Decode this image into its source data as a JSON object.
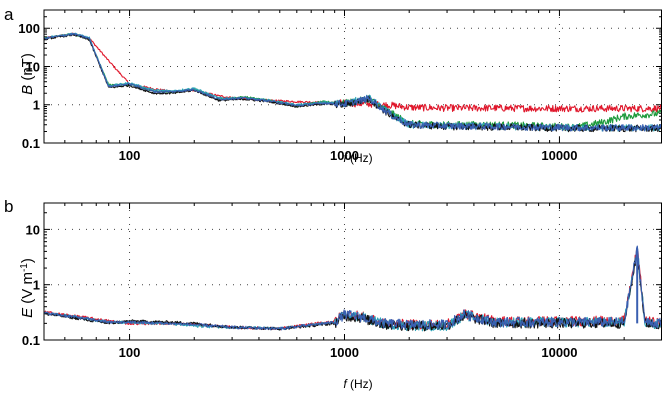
{
  "figure": {
    "panels": [
      {
        "id": "a",
        "panel_label": "a",
        "y_label_main": "B",
        "y_label_unit": " (nT)",
        "x_label_main": "f",
        "x_label_unit": " (Hz)"
      },
      {
        "id": "b",
        "panel_label": "b",
        "y_label_main": "E",
        "y_label_unit_pre": " (V m",
        "y_label_unit_sup": "-1",
        "y_label_unit_post": ")",
        "x_label_main": "f",
        "x_label_unit": " (Hz)"
      }
    ]
  },
  "chart_data": [
    {
      "type": "line",
      "panel": "a",
      "xscale": "log",
      "yscale": "log",
      "xlim": [
        40,
        30000
      ],
      "ylim": [
        0.1,
        300
      ],
      "xticks": [
        100,
        1000,
        10000
      ],
      "xtick_labels": [
        "100",
        "1000",
        "10000"
      ],
      "yticks": [
        0.1,
        1,
        10,
        100
      ],
      "ytick_labels": [
        "0.1",
        "1",
        "10",
        "100"
      ],
      "grid": "dotted",
      "series_colors": [
        "#e0182c",
        "#1e9a3c",
        "#2aa3b8",
        "#111111",
        "#3a5fb0"
      ],
      "series": [
        {
          "color": "#e0182c",
          "x": [
            40,
            55,
            65,
            80,
            100,
            130,
            160,
            200,
            260,
            340,
            450,
            600,
            800,
            1000,
            1300,
            1700,
            2000,
            3000,
            5000,
            8000,
            12000,
            20000,
            30000
          ],
          "y": [
            55,
            72,
            55,
            14,
            3.5,
            2.6,
            2.2,
            2.4,
            1.7,
            1.4,
            1.3,
            1.2,
            1.15,
            1.1,
            1.05,
            0.95,
            0.85,
            0.82,
            0.82,
            0.8,
            0.8,
            0.8,
            0.8
          ]
        },
        {
          "color": "#1e9a3c",
          "x": [
            40,
            55,
            65,
            80,
            100,
            130,
            160,
            200,
            260,
            340,
            450,
            600,
            800,
            1000,
            1300,
            1700,
            2000,
            3000,
            5000,
            8000,
            12000,
            16000,
            20000,
            25000,
            30000
          ],
          "y": [
            55,
            70,
            52,
            3.3,
            3.4,
            2.3,
            2.1,
            2.6,
            1.4,
            1.6,
            1.3,
            0.95,
            1.2,
            1.1,
            1.4,
            0.55,
            0.32,
            0.3,
            0.3,
            0.28,
            0.26,
            0.35,
            0.5,
            0.55,
            0.6
          ]
        },
        {
          "color": "#2aa3b8",
          "x": [
            40,
            55,
            65,
            80,
            100,
            130,
            160,
            200,
            260,
            340,
            450,
            600,
            800,
            1000,
            1300,
            1700,
            2000,
            3000,
            5000,
            8000,
            12000,
            20000,
            30000
          ],
          "y": [
            55,
            73,
            56,
            3.1,
            3.7,
            2.4,
            2.3,
            2.7,
            1.5,
            1.5,
            1.3,
            1.0,
            1.15,
            1.1,
            1.5,
            0.5,
            0.3,
            0.28,
            0.27,
            0.26,
            0.25,
            0.25,
            0.25
          ]
        },
        {
          "color": "#111111",
          "x": [
            40,
            55,
            65,
            80,
            100,
            130,
            160,
            200,
            260,
            340,
            450,
            600,
            800,
            1000,
            1300,
            1700,
            2000,
            3000,
            5000,
            8000,
            12000,
            20000,
            30000
          ],
          "y": [
            52,
            68,
            50,
            2.8,
            3.2,
            2.0,
            2.0,
            2.4,
            1.3,
            1.4,
            1.2,
            0.9,
            1.05,
            1.0,
            1.4,
            0.45,
            0.3,
            0.27,
            0.26,
            0.25,
            0.24,
            0.24,
            0.24
          ]
        },
        {
          "color": "#3a5fb0",
          "x": [
            40,
            55,
            65,
            80,
            100,
            130,
            160,
            200,
            260,
            340,
            450,
            600,
            800,
            1000,
            1300,
            1700,
            2000,
            3000,
            5000,
            8000,
            12000,
            20000,
            30000
          ],
          "y": [
            54,
            71,
            54,
            3.0,
            3.5,
            2.2,
            2.2,
            2.5,
            1.4,
            1.5,
            1.25,
            0.95,
            1.1,
            1.05,
            1.45,
            0.48,
            0.3,
            0.28,
            0.27,
            0.26,
            0.25,
            0.25,
            0.25
          ]
        }
      ]
    },
    {
      "type": "line",
      "panel": "b",
      "xscale": "log",
      "yscale": "log",
      "xlim": [
        40,
        30000
      ],
      "ylim": [
        0.1,
        30
      ],
      "xticks": [
        100,
        1000,
        10000
      ],
      "xtick_labels": [
        "100",
        "1000",
        "10000"
      ],
      "yticks": [
        0.1,
        1,
        10
      ],
      "ytick_labels": [
        "0.1",
        "1",
        "10"
      ],
      "grid": "dotted",
      "annotations": [
        {
          "x": 23000,
          "y": 4.5,
          "note": "narrow spike"
        }
      ],
      "series": [
        {
          "color": "#e0182c",
          "x": [
            40,
            60,
            80,
            100,
            150,
            200,
            300,
            500,
            900,
            1000,
            1200,
            1500,
            2000,
            3000,
            3600,
            5000,
            8000,
            12000,
            20000,
            23000,
            25000,
            30000
          ],
          "y": [
            0.32,
            0.26,
            0.22,
            0.2,
            0.2,
            0.19,
            0.17,
            0.16,
            0.22,
            0.3,
            0.27,
            0.2,
            0.19,
            0.19,
            0.3,
            0.22,
            0.22,
            0.22,
            0.22,
            4.5,
            0.22,
            0.2
          ]
        },
        {
          "color": "#2aa3b8",
          "x": [
            40,
            60,
            80,
            100,
            150,
            200,
            300,
            500,
            900,
            1000,
            1200,
            1500,
            2000,
            3000,
            3600,
            5000,
            8000,
            12000,
            20000,
            23000,
            25000,
            30000
          ],
          "y": [
            0.31,
            0.25,
            0.21,
            0.21,
            0.2,
            0.18,
            0.17,
            0.16,
            0.21,
            0.28,
            0.26,
            0.2,
            0.18,
            0.18,
            0.28,
            0.21,
            0.21,
            0.21,
            0.21,
            4.3,
            0.21,
            0.19
          ]
        },
        {
          "color": "#111111",
          "x": [
            40,
            60,
            80,
            100,
            150,
            200,
            300,
            500,
            900,
            1000,
            1200,
            1500,
            2000,
            3000,
            3600,
            5000,
            8000,
            12000,
            20000,
            23000,
            25000,
            30000
          ],
          "y": [
            0.3,
            0.24,
            0.2,
            0.22,
            0.21,
            0.2,
            0.17,
            0.16,
            0.2,
            0.27,
            0.25,
            0.19,
            0.18,
            0.18,
            0.27,
            0.2,
            0.2,
            0.2,
            0.2,
            4.0,
            0.2,
            0.19
          ]
        },
        {
          "color": "#3a5fb0",
          "x": [
            40,
            60,
            80,
            100,
            150,
            200,
            300,
            500,
            900,
            1000,
            1200,
            1500,
            2000,
            3000,
            3600,
            5000,
            8000,
            12000,
            20000,
            23000,
            25000,
            30000
          ],
          "y": [
            0.31,
            0.25,
            0.21,
            0.21,
            0.2,
            0.19,
            0.17,
            0.16,
            0.21,
            0.29,
            0.26,
            0.2,
            0.19,
            0.19,
            0.29,
            0.21,
            0.21,
            0.21,
            0.21,
            4.4,
            0.21,
            0.2
          ]
        }
      ]
    }
  ]
}
